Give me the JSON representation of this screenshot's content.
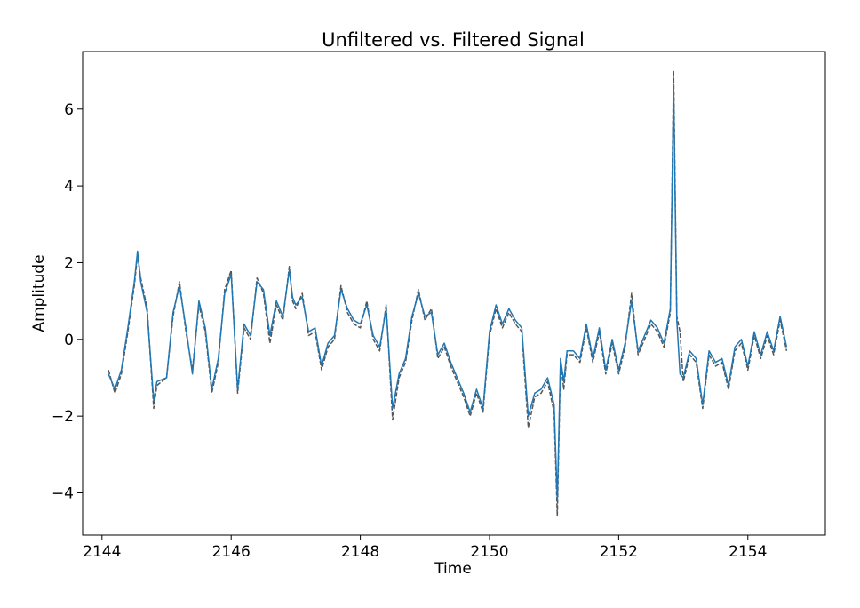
{
  "chart_data": {
    "type": "line",
    "title": "Unfiltered vs. Filtered Signal",
    "xlabel": "Time",
    "ylabel": "Amplitude",
    "xlim": [
      2143.7,
      2155.2
    ],
    "ylim": [
      -5.1,
      7.5
    ],
    "xticks": [
      2144,
      2146,
      2148,
      2150,
      2152,
      2154
    ],
    "yticks": [
      -4,
      -2,
      0,
      2,
      4,
      6
    ],
    "xtick_labels": [
      "2144",
      "2146",
      "2148",
      "2150",
      "2152",
      "2154"
    ],
    "ytick_labels": [
      "−4",
      "−2",
      "0",
      "2",
      "4",
      "6"
    ],
    "grid": false,
    "series": [
      {
        "name": "Unfiltered",
        "color": "#555555",
        "style": "dashed",
        "x": [
          2144.1,
          2144.2,
          2144.3,
          2144.4,
          2144.5,
          2144.55,
          2144.6,
          2144.7,
          2144.8,
          2144.85,
          2145.0,
          2145.1,
          2145.2,
          2145.3,
          2145.4,
          2145.5,
          2145.6,
          2145.7,
          2145.8,
          2145.9,
          2146.0,
          2146.1,
          2146.2,
          2146.3,
          2146.4,
          2146.5,
          2146.6,
          2146.7,
          2146.8,
          2146.9,
          2146.95,
          2147.0,
          2147.1,
          2147.2,
          2147.3,
          2147.4,
          2147.5,
          2147.6,
          2147.7,
          2147.8,
          2147.9,
          2148.0,
          2148.1,
          2148.2,
          2148.3,
          2148.4,
          2148.5,
          2148.6,
          2148.7,
          2148.8,
          2148.9,
          2149.0,
          2149.1,
          2149.2,
          2149.3,
          2149.4,
          2149.5,
          2149.6,
          2149.7,
          2149.8,
          2149.9,
          2150.0,
          2150.1,
          2150.2,
          2150.3,
          2150.4,
          2150.5,
          2150.6,
          2150.7,
          2150.8,
          2150.9,
          2151.0,
          2151.05,
          2151.1,
          2151.15,
          2151.2,
          2151.3,
          2151.4,
          2151.5,
          2151.6,
          2151.7,
          2151.8,
          2151.9,
          2152.0,
          2152.1,
          2152.2,
          2152.3,
          2152.4,
          2152.5,
          2152.6,
          2152.7,
          2152.8,
          2152.85,
          2152.9,
          2152.95,
          2153.0,
          2153.1,
          2153.2,
          2153.3,
          2153.4,
          2153.5,
          2153.6,
          2153.7,
          2153.8,
          2153.9,
          2154.0,
          2154.1,
          2154.2,
          2154.3,
          2154.4,
          2154.5,
          2154.6
        ],
        "y": [
          -0.8,
          -1.4,
          -0.9,
          0.2,
          1.4,
          2.2,
          1.6,
          0.8,
          -1.8,
          -1.2,
          -1.0,
          0.6,
          1.5,
          0.2,
          -0.8,
          0.9,
          0.2,
          -1.4,
          -0.6,
          1.3,
          1.8,
          -1.4,
          0.3,
          0.0,
          1.6,
          1.2,
          -0.1,
          0.9,
          0.5,
          1.9,
          1.0,
          0.8,
          1.2,
          0.1,
          0.2,
          -0.8,
          -0.2,
          0.0,
          1.4,
          0.7,
          0.4,
          0.3,
          1.0,
          0.0,
          -0.3,
          0.9,
          -2.1,
          -1.0,
          -0.6,
          0.5,
          1.3,
          0.5,
          0.8,
          -0.5,
          -0.2,
          -0.7,
          -1.1,
          -1.5,
          -2.0,
          -1.4,
          -1.9,
          0.1,
          0.8,
          0.3,
          0.7,
          0.4,
          0.2,
          -2.3,
          -1.5,
          -1.4,
          -1.1,
          -1.9,
          -4.6,
          -0.6,
          -1.3,
          -0.4,
          -0.4,
          -0.6,
          0.3,
          -0.6,
          0.2,
          -0.9,
          -0.1,
          -0.9,
          -0.2,
          1.2,
          -0.4,
          0.0,
          0.4,
          0.2,
          -0.2,
          0.7,
          7.0,
          0.6,
          0.2,
          -1.1,
          -0.4,
          -0.6,
          -1.8,
          -0.4,
          -0.7,
          -0.6,
          -1.3,
          -0.3,
          -0.1,
          -0.8,
          0.1,
          -0.5,
          0.1,
          -0.4,
          0.5,
          -0.3
        ]
      },
      {
        "name": "Filtered",
        "color": "#1f77b4",
        "style": "solid",
        "x": [
          2144.1,
          2144.2,
          2144.3,
          2144.4,
          2144.5,
          2144.55,
          2144.6,
          2144.7,
          2144.8,
          2144.85,
          2145.0,
          2145.1,
          2145.2,
          2145.3,
          2145.4,
          2145.5,
          2145.6,
          2145.7,
          2145.8,
          2145.9,
          2146.0,
          2146.1,
          2146.2,
          2146.3,
          2146.4,
          2146.5,
          2146.6,
          2146.7,
          2146.8,
          2146.9,
          2146.95,
          2147.0,
          2147.1,
          2147.2,
          2147.3,
          2147.4,
          2147.5,
          2147.6,
          2147.7,
          2147.8,
          2147.9,
          2148.0,
          2148.1,
          2148.2,
          2148.3,
          2148.4,
          2148.5,
          2148.6,
          2148.7,
          2148.8,
          2148.9,
          2149.0,
          2149.1,
          2149.2,
          2149.3,
          2149.4,
          2149.5,
          2149.6,
          2149.7,
          2149.8,
          2149.9,
          2150.0,
          2150.1,
          2150.2,
          2150.3,
          2150.4,
          2150.5,
          2150.6,
          2150.7,
          2150.8,
          2150.9,
          2151.0,
          2151.05,
          2151.1,
          2151.15,
          2151.2,
          2151.3,
          2151.4,
          2151.5,
          2151.6,
          2151.7,
          2151.8,
          2151.9,
          2152.0,
          2152.1,
          2152.2,
          2152.3,
          2152.4,
          2152.5,
          2152.6,
          2152.7,
          2152.8,
          2152.85,
          2152.9,
          2152.95,
          2153.0,
          2153.1,
          2153.2,
          2153.3,
          2153.4,
          2153.5,
          2153.6,
          2153.7,
          2153.8,
          2153.9,
          2154.0,
          2154.1,
          2154.2,
          2154.3,
          2154.4,
          2154.5,
          2154.6
        ],
        "y": [
          -0.9,
          -1.3,
          -0.8,
          0.3,
          1.5,
          2.3,
          1.5,
          0.7,
          -1.6,
          -1.1,
          -1.0,
          0.7,
          1.4,
          0.3,
          -0.9,
          1.0,
          0.3,
          -1.3,
          -0.5,
          1.2,
          1.7,
          -1.3,
          0.4,
          0.1,
          1.5,
          1.3,
          0.1,
          1.0,
          0.6,
          1.8,
          1.1,
          0.9,
          1.1,
          0.2,
          0.3,
          -0.7,
          -0.1,
          0.1,
          1.3,
          0.8,
          0.5,
          0.4,
          0.9,
          0.1,
          -0.2,
          0.8,
          -1.8,
          -0.9,
          -0.5,
          0.6,
          1.2,
          0.6,
          0.7,
          -0.4,
          -0.1,
          -0.6,
          -1.0,
          -1.4,
          -1.9,
          -1.3,
          -1.8,
          0.2,
          0.9,
          0.4,
          0.8,
          0.5,
          0.3,
          -2.0,
          -1.4,
          -1.3,
          -1.0,
          -1.7,
          -4.2,
          -0.5,
          -1.1,
          -0.3,
          -0.3,
          -0.5,
          0.4,
          -0.5,
          0.3,
          -0.8,
          0.0,
          -0.8,
          -0.1,
          1.0,
          -0.3,
          0.1,
          0.5,
          0.3,
          -0.1,
          0.8,
          6.6,
          0.5,
          -0.9,
          -1.0,
          -0.3,
          -0.5,
          -1.7,
          -0.3,
          -0.6,
          -0.5,
          -1.2,
          -0.2,
          0.0,
          -0.7,
          0.2,
          -0.4,
          0.2,
          -0.3,
          0.6,
          -0.2
        ]
      }
    ]
  }
}
